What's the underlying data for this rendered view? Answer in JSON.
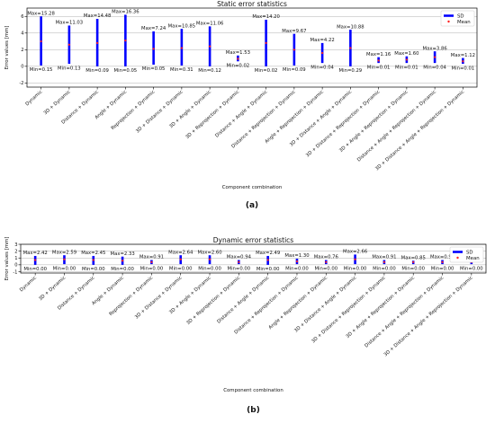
{
  "chart_data": [
    {
      "type": "errorbar",
      "title": "Static error statistics",
      "xlabel": "Component combination",
      "ylabel": "Error values [mm]",
      "ylim": [
        -2.5,
        7
      ],
      "yticks": [
        -2,
        0,
        2,
        4,
        6
      ],
      "categories": [
        "Dynamic",
        "3D + Dynamic",
        "Distance + Dynamic",
        "Angle + Dynamic",
        "Reprojection + Dynamic",
        "3D + Distance + Dynamic",
        "3D + Angle + Dynamic",
        "3D + Reprojection + Dynamic",
        "Distance + Angle + Dynamic",
        "Distance + Reprojection + Dynamic",
        "Angle + Reprojection + Dynamic",
        "3D + Distance + Angle + Dynamic",
        "3D + Distance + Reprojection + Dynamic",
        "3D + Angle + Reprojection + Dynamic",
        "Distance + Angle + Reprojection + Dynamic",
        "3D + Distance + Angle + Reprojection + Dynamic"
      ],
      "max_labels": [
        "Max=15.28",
        "Max=11.03",
        "Max=14.48",
        "Max=16.36",
        "Max=7.24",
        "Max=10.85",
        "Max=11.06",
        "Max=1.53",
        "Max=14.20",
        "Max=9.67",
        "Max=4.22",
        "Max=10.88",
        "Max=1.16",
        "Max=1.60",
        "Max=3.86",
        "Max=1.12"
      ],
      "min_labels": [
        "Min=0.15",
        "Min=0.13",
        "Min=0.09",
        "Min=0.05",
        "Min=0.05",
        "Min=0.31",
        "Min=0.12",
        "Min=0.02",
        "Min=0.02",
        "Min=0.09",
        "Min=0.04",
        "Min=0.29",
        "Min=0.01",
        "Min=0.01",
        "Min=0.04",
        "Min=0.01"
      ],
      "mean": [
        3.0,
        2.6,
        2.8,
        3.1,
        2.1,
        2.2,
        2.4,
        0.9,
        2.8,
        2.0,
        1.6,
        2.2,
        0.7,
        0.8,
        1.1,
        0.6
      ],
      "sd_low": [
        0.1,
        0.3,
        0.0,
        0.0,
        0.2,
        0.1,
        0.0,
        0.6,
        0.0,
        0.1,
        0.4,
        0.0,
        0.4,
        0.4,
        0.4,
        0.3
      ],
      "sd_high": [
        6.0,
        4.9,
        5.7,
        6.2,
        4.2,
        4.5,
        4.8,
        1.3,
        5.6,
        3.9,
        2.8,
        4.4,
        1.1,
        1.2,
        1.8,
        1.0
      ],
      "legend": {
        "position": "top-right",
        "entries": [
          "SD",
          "Mean"
        ]
      },
      "sublabel": "(a)"
    },
    {
      "type": "errorbar",
      "title": "Dynamic error statistics",
      "xlabel": "Component combination",
      "ylabel": "Error values [mm]",
      "ylim": [
        -1.2,
        3
      ],
      "yticks": [
        -1,
        0,
        1,
        2,
        3
      ],
      "categories": [
        "Dynamic",
        "3D + Dynamic",
        "Distance + Dynamic",
        "Angle + Dynamic",
        "Reprojection + Dynamic",
        "3D + Distance + Dynamic",
        "3D + Angle + Dynamic",
        "3D + Reprojection + Dynamic",
        "Distance + Angle + Dynamic",
        "Distance + Reprojection + Dynamic",
        "Angle + Reprojection + Dynamic",
        "3D + Distance + Angle + Dynamic",
        "3D + Distance + Reprojection + Dynamic",
        "3D + Angle + Reprojection + Dynamic",
        "Distance + Angle + Reprojection + Dynamic",
        "3D + Distance + Angle + Reprojection + Dynamic"
      ],
      "max_labels": [
        "Max=2.42",
        "Max=2.59",
        "Max=2.45",
        "Max=2.33",
        "Max=0.91",
        "Max=2.64",
        "Max=2.60",
        "Max=0.94",
        "Max=2.49",
        "Max=1.30",
        "Max=0.76",
        "Max=2.66",
        "Max=0.91",
        "Max=0.85",
        "Max=0.91",
        "Max=0.85"
      ],
      "min_labels": [
        "Min=0.00",
        "Min=0.00",
        "Min=0.00",
        "Min=0.00",
        "Min=0.00",
        "Min=0.00",
        "Min=0.00",
        "Min=0.00",
        "Min=0.00",
        "Min=0.00",
        "Min=0.00",
        "Min=0.00",
        "Min=0.00",
        "Min=0.00",
        "Min=0.00",
        "Min=0.00"
      ],
      "mean": [
        0.7,
        0.8,
        0.7,
        0.6,
        0.4,
        0.8,
        0.8,
        0.4,
        0.7,
        0.5,
        0.4,
        0.8,
        0.4,
        0.4,
        0.4,
        0.4
      ],
      "sd_low": [
        0.0,
        0.1,
        0.0,
        0.0,
        0.1,
        0.1,
        0.1,
        0.1,
        0.0,
        0.1,
        0.1,
        0.1,
        0.1,
        0.1,
        0.1,
        0.1
      ],
      "sd_high": [
        1.3,
        1.4,
        1.3,
        1.2,
        0.7,
        1.4,
        1.4,
        0.7,
        1.3,
        0.9,
        0.7,
        1.5,
        0.7,
        0.6,
        0.7,
        0.6
      ],
      "legend": {
        "position": "top-right",
        "entries": [
          "SD",
          "Mean"
        ]
      },
      "sublabel": "(b)"
    }
  ],
  "colors": {
    "sd": "#0000ff",
    "mean": "#ff2020",
    "axes": "#000000",
    "grid": "#b0b0b0"
  }
}
